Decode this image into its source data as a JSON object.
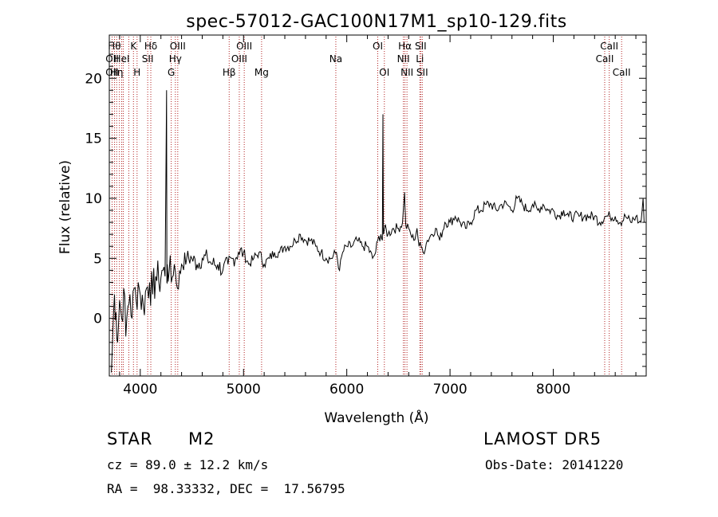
{
  "chart_data": {
    "type": "line",
    "title": "spec-57012-GAC100N17M1_sp10-129.fits",
    "xlabel": "Wavelength (Å)",
    "ylabel": "Flux (relative)",
    "xlim": [
      3700,
      8900
    ],
    "ylim": [
      -4.8,
      23.6
    ],
    "x_ticks": [
      4000,
      5000,
      6000,
      7000,
      8000
    ],
    "y_ticks": [
      0,
      5,
      10,
      15,
      20
    ],
    "grid": false,
    "line_color": "#000000",
    "marker_color": "#b22222",
    "series": [
      {
        "x": [
          3720,
          3735,
          3750,
          3765,
          3780,
          3800,
          3820,
          3840,
          3860,
          3880,
          3900,
          3920,
          3940,
          3960,
          3980,
          4000,
          4030,
          4060,
          4090,
          4120,
          4150,
          4180,
          4210,
          4240,
          4255,
          4258,
          4262,
          4280,
          4300,
          4330,
          4360,
          4400,
          4450,
          4500,
          4550,
          4600,
          4650,
          4700,
          4750,
          4800,
          4850,
          4900,
          4950,
          5000,
          5050,
          5100,
          5150,
          5200,
          5250,
          5300,
          5350,
          5400,
          5450,
          5500,
          5550,
          5600,
          5650,
          5700,
          5750,
          5800,
          5850,
          5900,
          5930,
          5960,
          6000,
          6050,
          6100,
          6150,
          6200,
          6250,
          6280,
          6300,
          6330,
          6345,
          6350,
          6355,
          6365,
          6400,
          6450,
          6500,
          6540,
          6560,
          6565,
          6570,
          6580,
          6600,
          6620,
          6650,
          6680,
          6700,
          6720,
          6740,
          6780,
          6820,
          6860,
          6900,
          6950,
          7000,
          7050,
          7100,
          7150,
          7200,
          7250,
          7300,
          7350,
          7400,
          7450,
          7500,
          7550,
          7600,
          7650,
          7700,
          7750,
          7800,
          7850,
          7900,
          7950,
          8000,
          8050,
          8100,
          8150,
          8200,
          8250,
          8300,
          8350,
          8400,
          8450,
          8500,
          8550,
          8600,
          8650,
          8700,
          8750,
          8800,
          8830,
          8850,
          8870,
          8880
        ],
        "values": [
          -4.5,
          -1.0,
          2.0,
          0.5,
          -2.0,
          1.5,
          0.0,
          2.5,
          -1.5,
          1.0,
          2.0,
          0.0,
          2.5,
          1.5,
          3.0,
          2.0,
          1.0,
          2.5,
          3.0,
          2.0,
          3.5,
          3.0,
          4.0,
          3.5,
          19.0,
          3.0,
          4.5,
          4.0,
          3.0,
          4.5,
          2.5,
          4.5,
          5.0,
          5.0,
          4.5,
          5.0,
          5.0,
          4.5,
          4.5,
          4.0,
          4.5,
          5.0,
          5.5,
          5.5,
          4.5,
          5.0,
          5.5,
          4.5,
          5.0,
          5.5,
          5.5,
          6.0,
          6.0,
          6.5,
          7.0,
          6.5,
          6.5,
          6.0,
          5.5,
          5.0,
          5.0,
          5.5,
          4.0,
          5.5,
          6.0,
          6.0,
          6.5,
          6.0,
          6.0,
          5.0,
          5.5,
          6.5,
          7.0,
          6.5,
          17.0,
          7.0,
          7.5,
          7.0,
          7.5,
          7.5,
          8.0,
          10.5,
          9.0,
          8.0,
          7.5,
          7.5,
          7.0,
          6.5,
          7.5,
          6.0,
          6.0,
          5.5,
          6.5,
          7.0,
          7.5,
          6.5,
          8.0,
          8.0,
          8.5,
          8.0,
          7.5,
          8.0,
          9.0,
          9.0,
          9.5,
          9.5,
          9.0,
          9.5,
          9.5,
          9.0,
          10.0,
          9.5,
          9.0,
          9.5,
          9.0,
          9.5,
          9.0,
          9.0,
          8.5,
          9.0,
          8.5,
          8.5,
          8.5,
          8.5,
          8.5,
          8.5,
          8.0,
          8.5,
          8.5,
          8.5,
          8.0,
          8.5,
          8.0,
          8.5,
          8.0,
          8.0,
          10.0,
          8.0
        ]
      }
    ],
    "line_markers": [
      {
        "x": 3727,
        "label": "OII",
        "row": 1
      },
      {
        "x": 3727,
        "label": "OII",
        "row": 2
      },
      {
        "x": 3750,
        "label": "Hθ",
        "row": 0
      },
      {
        "x": 3771,
        "label": "Hη",
        "row": 2
      },
      {
        "x": 3798,
        "label": "",
        "row": 0
      },
      {
        "x": 3820,
        "label": "HeI",
        "row": 1
      },
      {
        "x": 3835,
        "label": "",
        "row": 0
      },
      {
        "x": 3889,
        "label": "",
        "row": 0
      },
      {
        "x": 3934,
        "label": "K",
        "row": 0
      },
      {
        "x": 3969,
        "label": "H",
        "row": 2
      },
      {
        "x": 4072,
        "label": "SII",
        "row": 1
      },
      {
        "x": 4102,
        "label": "Hδ",
        "row": 0
      },
      {
        "x": 4300,
        "label": "G",
        "row": 2
      },
      {
        "x": 4340,
        "label": "Hγ",
        "row": 1
      },
      {
        "x": 4363,
        "label": "OIII",
        "row": 0
      },
      {
        "x": 4861,
        "label": "Hβ",
        "row": 2
      },
      {
        "x": 4959,
        "label": "OIII",
        "row": 1
      },
      {
        "x": 5007,
        "label": "OIII",
        "row": 0
      },
      {
        "x": 5175,
        "label": "Mg",
        "row": 2
      },
      {
        "x": 5894,
        "label": "Na",
        "row": 1
      },
      {
        "x": 6300,
        "label": "OI",
        "row": 0
      },
      {
        "x": 6364,
        "label": "OI",
        "row": 2
      },
      {
        "x": 6548,
        "label": "NII",
        "row": 1
      },
      {
        "x": 6563,
        "label": "Hα",
        "row": 0
      },
      {
        "x": 6583,
        "label": "NII",
        "row": 2
      },
      {
        "x": 6708,
        "label": "Li",
        "row": 1
      },
      {
        "x": 6716,
        "label": "SII",
        "row": 0
      },
      {
        "x": 6731,
        "label": "SII",
        "row": 2
      },
      {
        "x": 8498,
        "label": "CaII",
        "row": 1
      },
      {
        "x": 8542,
        "label": "CaII",
        "row": 0
      },
      {
        "x": 8662,
        "label": "CaII",
        "row": 2
      }
    ]
  },
  "info": {
    "object_class": "STAR",
    "subclass": "M2",
    "survey": "LAMOST DR5",
    "redshift_text": "cz = 89.0 ± 12.2 km/s",
    "obs_date": "Obs-Date: 20141220",
    "coords": "RA =  98.33332, DEC =  17.56795"
  }
}
